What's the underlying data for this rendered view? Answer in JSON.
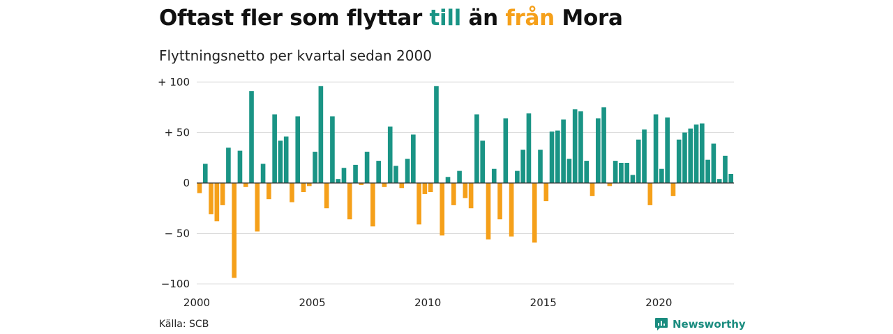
{
  "header": {
    "title_parts": [
      "Oftast fler som flyttar ",
      "till",
      " än ",
      "från",
      " Mora"
    ],
    "subtitle": "Flyttningsnetto per kvartal sedan 2000"
  },
  "footer": {
    "source": "Källa: SCB",
    "brand": "Newsworthy"
  },
  "colors": {
    "positive": "#1a9485",
    "negative": "#f5a01a",
    "brand": "#1a8c7f"
  },
  "chart_data": {
    "type": "bar",
    "x_start": 2000.0,
    "quarter_step": 0.25,
    "xlim": [
      2000,
      2023.25
    ],
    "ylim": [
      -100,
      100
    ],
    "yticks": [
      100,
      50,
      0,
      -50,
      -100
    ],
    "ytick_labels": [
      "+ 100",
      "+  50",
      "0",
      "− 50",
      "−100"
    ],
    "xticks": [
      2000,
      2005,
      2010,
      2015,
      2020
    ],
    "xtick_labels": [
      "2000",
      "2005",
      "2010",
      "2015",
      "2020"
    ],
    "grid": true,
    "values": [
      -10,
      19,
      -31,
      -38,
      -22,
      35,
      -94,
      32,
      -4,
      91,
      -48,
      19,
      -16,
      68,
      42,
      46,
      -19,
      66,
      -9,
      -3,
      31,
      96,
      -25,
      66,
      4,
      15,
      -36,
      18,
      -2,
      31,
      -43,
      22,
      -4,
      56,
      17,
      -5,
      24,
      48,
      -41,
      -11,
      -9,
      96,
      -52,
      6,
      -22,
      12,
      -15,
      -25,
      68,
      42,
      -56,
      14,
      -36,
      64,
      -53,
      12,
      33,
      69,
      -59,
      33,
      -18,
      51,
      52,
      63,
      24,
      73,
      71,
      22,
      -13,
      64,
      75,
      -3,
      22,
      20,
      20,
      8,
      43,
      53,
      -22,
      68,
      14,
      65,
      -13,
      43,
      50,
      54,
      58,
      59,
      23,
      39,
      4,
      27,
      9
    ]
  }
}
